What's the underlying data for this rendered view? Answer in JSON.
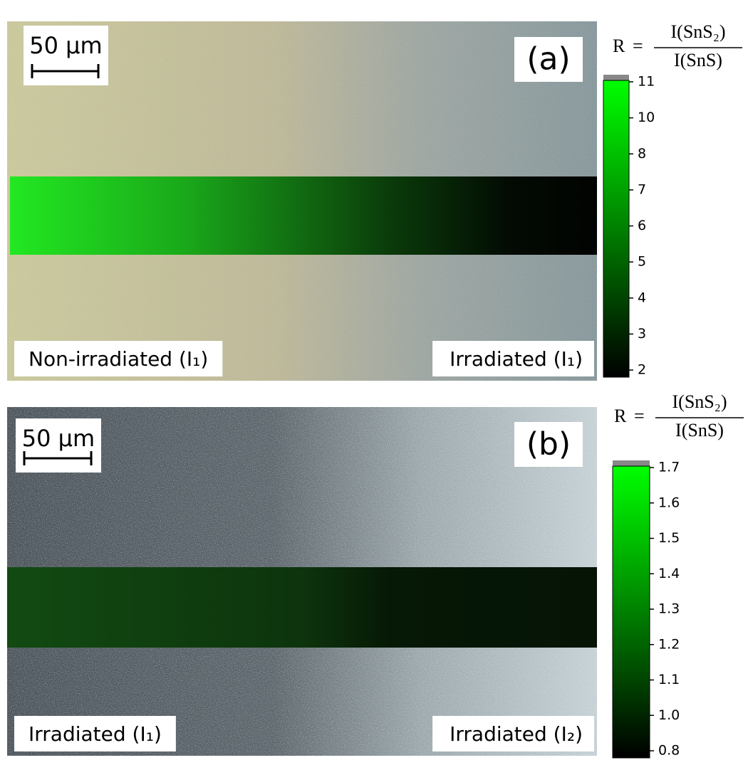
{
  "panels": [
    {
      "label": "(a)",
      "scale_bar": "50 µm",
      "caption_left": "Non-irradiated (I₁)",
      "caption_right": "Irradiated (I₁)",
      "colorbar": {
        "lhs": "R",
        "relation": "=",
        "numerator": "I(SnS₂)",
        "denominator": "I(SnS)",
        "ticks": [
          11,
          10,
          8,
          7,
          6,
          5,
          4,
          3,
          2
        ]
      }
    },
    {
      "label": "(b)",
      "scale_bar": "50 µm",
      "caption_left": "Irradiated (I₁)",
      "caption_right": "Irradiated (I₂)",
      "colorbar": {
        "lhs": "R",
        "relation": "=",
        "numerator": "I(SnS₂)",
        "denominator": "I(SnS)",
        "ticks": [
          1.7,
          1.6,
          1.5,
          1.4,
          1.3,
          1.2,
          1.1,
          {
            "value": 1,
            "label": "1.0"
          },
          0.8
        ]
      }
    }
  ]
}
